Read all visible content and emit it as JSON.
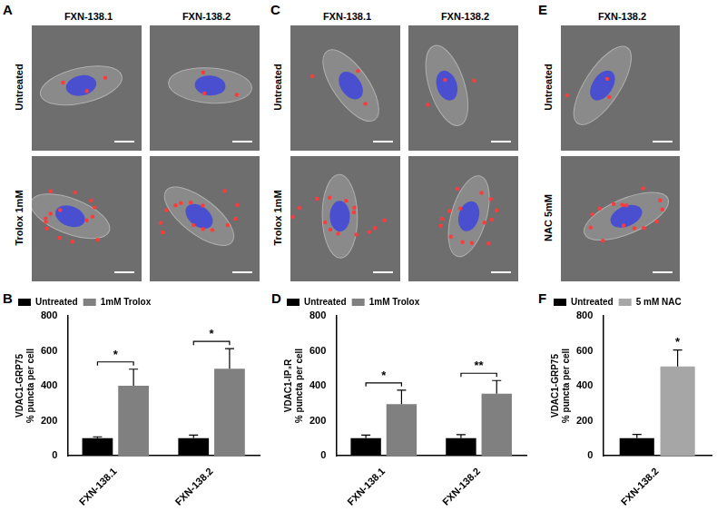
{
  "panels": [
    {
      "letter": "A",
      "columns": [
        "FXN-138.1",
        "FXN-138.2"
      ],
      "rows": [
        "Untreated",
        "Trolox 1mM"
      ]
    },
    {
      "letter": "C",
      "columns": [
        "FXN-138.1",
        "FXN-138.2"
      ],
      "rows": [
        "Untreated",
        "Trolox 1mM"
      ]
    },
    {
      "letter": "E",
      "columns": [
        "FXN-138.2"
      ],
      "rows": [
        "Untreated",
        "NAC 5mM"
      ]
    }
  ],
  "chart_data": [
    {
      "type": "bar",
      "title": "B",
      "y_label": [
        "VDAC1-GRP75",
        "% puncta per cell"
      ],
      "categories": [
        "FXN-138.1",
        "FXN-138.2"
      ],
      "series": [
        {
          "name": "Untreated",
          "color": "#000000",
          "values": [
            100,
            100
          ],
          "errors": [
            8,
            18
          ]
        },
        {
          "name": "1mM Trolox",
          "color": "#808080",
          "values": [
            400,
            497
          ],
          "errors": [
            95,
            115
          ]
        }
      ],
      "annotations": [
        {
          "category": "FXN-138.1",
          "text": "*"
        },
        {
          "category": "FXN-138.2",
          "text": "*"
        }
      ],
      "ylim": [
        0,
        800
      ],
      "yticks": [
        0,
        200,
        400,
        600,
        800
      ],
      "grid": false,
      "legend": "top-left"
    },
    {
      "type": "bar",
      "title": "D",
      "y_label": [
        "VDAC1-IP₃R",
        "% puncta per cell"
      ],
      "categories": [
        "FXN-138.1",
        "FXN-138.2"
      ],
      "series": [
        {
          "name": "Untreated",
          "color": "#000000",
          "values": [
            100,
            100
          ],
          "errors": [
            18,
            20
          ]
        },
        {
          "name": "1mM Trolox",
          "color": "#808080",
          "values": [
            295,
            355
          ],
          "errors": [
            80,
            75
          ]
        }
      ],
      "annotations": [
        {
          "category": "FXN-138.1",
          "text": "*"
        },
        {
          "category": "FXN-138.2",
          "text": "**"
        }
      ],
      "ylim": [
        0,
        800
      ],
      "yticks": [
        0,
        200,
        400,
        600,
        800
      ],
      "grid": false,
      "legend": "top-left"
    },
    {
      "type": "bar",
      "title": "F",
      "y_label": [
        "VDAC1-GRP75",
        "% puncta per cell"
      ],
      "categories": [
        "FXN-138.2"
      ],
      "series": [
        {
          "name": "Untreated",
          "color": "#000000",
          "values": [
            100
          ],
          "errors": [
            22
          ]
        },
        {
          "name": "5 mM NAC",
          "color": "#a6a6a6",
          "values": [
            510
          ],
          "errors": [
            95
          ]
        }
      ],
      "annotations": [
        {
          "category": "FXN-138.2",
          "series": "5 mM NAC",
          "text": "*"
        }
      ],
      "ylim": [
        0,
        800
      ],
      "yticks": [
        0,
        200,
        400,
        600,
        800
      ],
      "grid": false,
      "legend": "top-left"
    }
  ]
}
